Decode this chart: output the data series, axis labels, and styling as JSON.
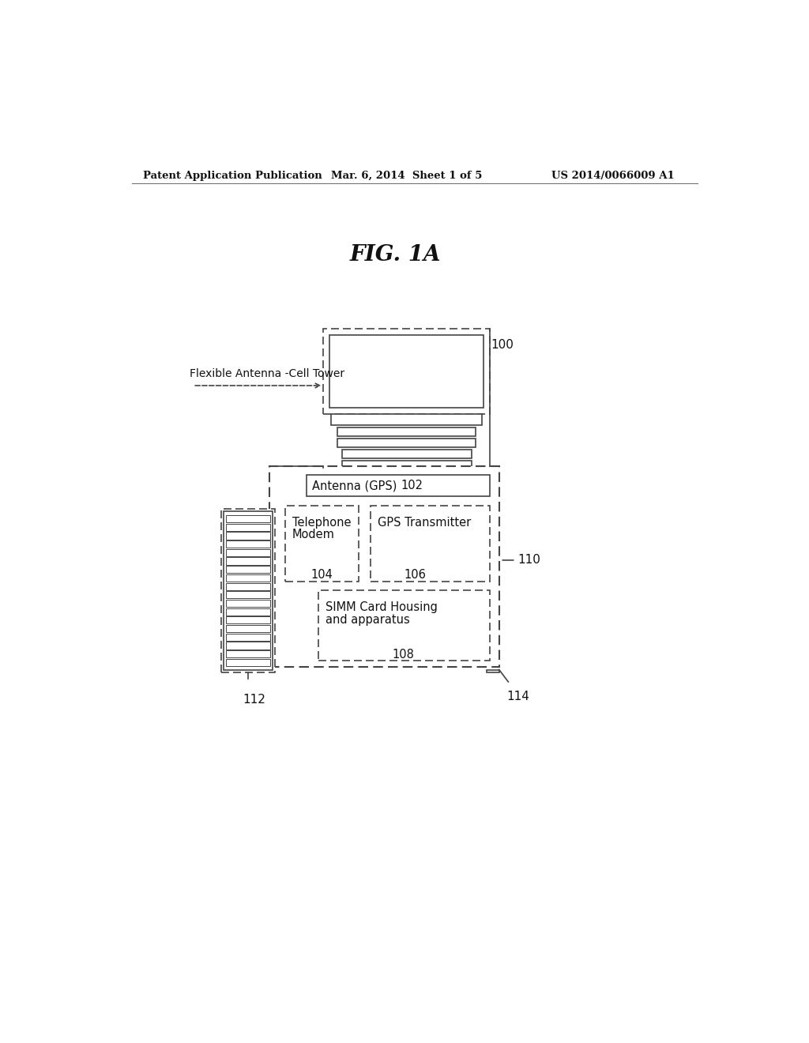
{
  "bg_color": "#ffffff",
  "header_left": "Patent Application Publication",
  "header_mid": "Mar. 6, 2014  Sheet 1 of 5",
  "header_right": "US 2014/0066009 A1",
  "fig_title": "FIG. 1A",
  "label_antenna": "Flexible Antenna -Cell Tower",
  "label_100": "100",
  "label_102_text": "Antenna (GPS)",
  "label_102_num": "102",
  "label_104_line1": "Telephone",
  "label_104_line2": "Modem",
  "label_104_num": "104",
  "label_106_line1": "GPS Transmitter",
  "label_106_num": "106",
  "label_108_line1": "SIMM Card Housing",
  "label_108_line2": "and apparatus",
  "label_108_num": "108",
  "label_110": "110",
  "label_112": "112",
  "label_114": "114",
  "line_color": "#444444",
  "text_color": "#111111"
}
